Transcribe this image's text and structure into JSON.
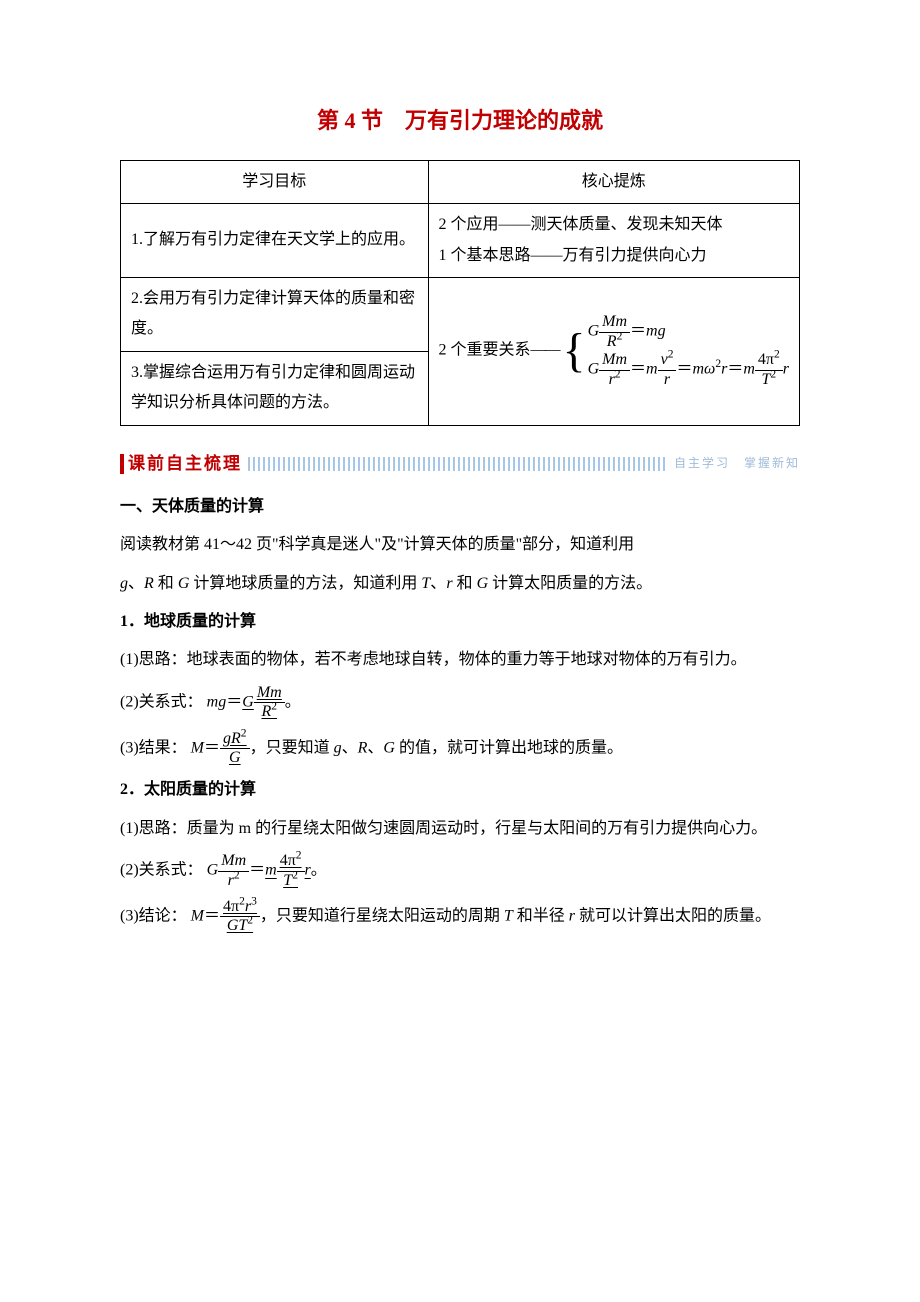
{
  "title": "第 4 节　万有引力理论的成就",
  "table": {
    "headers": [
      "学习目标",
      "核心提炼"
    ],
    "left": [
      "1.了解万有引力定律在天文学上的应用。",
      "2.会用万有引力定律计算天体的质量和密度。",
      "3.掌握综合运用万有引力定律和圆周运动学知识分析具体问题的方法。"
    ],
    "right_row0": "2 个应用——测天体质量、发现未知天体\n1 个基本思路——万有引力提供向心力",
    "right_row1_prefix": "2 个重要关系",
    "dash": "——"
  },
  "banner": {
    "label": "课前自主梳理",
    "tail": "自主学习　掌握新知"
  },
  "sec1": {
    "heading": "一、天体质量的计算",
    "intro": "阅读教材第 41～42 页\"科学真是迷人\"及\"计算天体的质量\"部分，知道利用",
    "intro2_a": "、",
    "intro2_b": " 和 ",
    "intro2_c": " 计算地球质量的方法，知道利用 ",
    "intro2_d": "、",
    "intro2_e": " 和 ",
    "intro2_f": " 计算太阳质量的方法。",
    "h1": "1．地球质量的计算",
    "p1": "(1)思路：地球表面的物体，若不考虑地球自转，物体的重力等于地球对物体的万有引力。",
    "p2_prefix": "(2)关系式：",
    "p2_suffix": "。",
    "p3_prefix": "(3)结果：",
    "p3_mid": "，只要知道 ",
    "p3_c1": "、",
    "p3_c2": "、",
    "p3_suffix": " 的值，就可计算出地球的质量。",
    "h2": "2．太阳质量的计算",
    "q1": "(1)思路：质量为 m 的行星绕太阳做匀速圆周运动时，行星与太阳间的万有引力提供向心力。",
    "q2_prefix": "(2)关系式：",
    "q2_suffix": "。",
    "q3_prefix": "(3)结论：",
    "q3_mid": "，只要知道行星绕太阳运动的周期 ",
    "q3_mid2": " 和半径 ",
    "q3_suffix": " 就可以计算出太阳的质量。"
  },
  "sym": {
    "g": "g",
    "R": "R",
    "G": "G",
    "T": "T",
    "r": "r",
    "M": "M",
    "m": "m",
    "Mm": "Mm",
    "mg": "mg",
    "R2": "R",
    "gR2": "gR",
    "r2": "r",
    "v2": "v",
    "pi": "π",
    "omega": "ω",
    "four": "4",
    "T2": "T",
    "r3": "r",
    "GT2": "GT",
    "eq": "＝"
  },
  "colors": {
    "accent": "#c00000",
    "stripe": "#a7c7e7"
  }
}
